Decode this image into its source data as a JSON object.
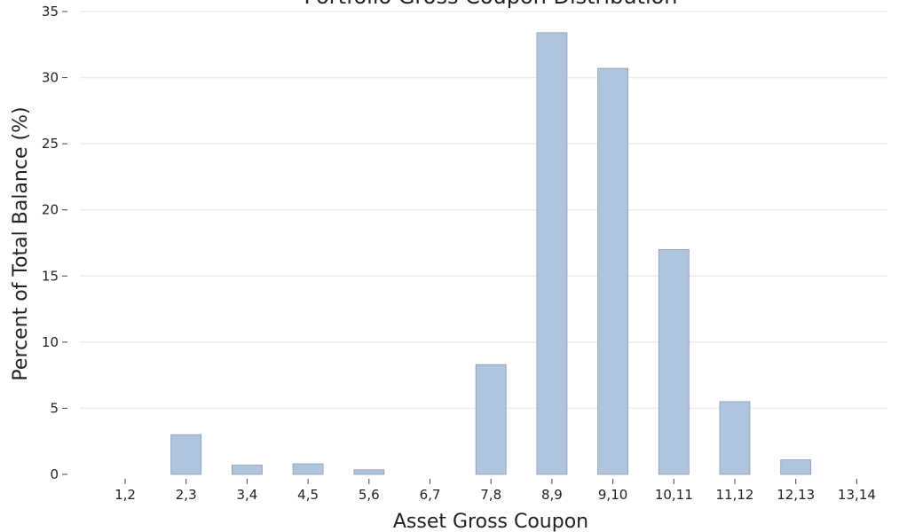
{
  "chart_data": {
    "type": "bar",
    "title": "Portfolio Gross Coupon Distribution",
    "xlabel": "Asset Gross Coupon",
    "ylabel": "Percent of Total Balance (%)",
    "categories": [
      "1,2",
      "2,3",
      "3,4",
      "4,5",
      "5,6",
      "6,7",
      "7,8",
      "8,9",
      "9,10",
      "10,11",
      "11,12",
      "12,13",
      "13,14"
    ],
    "values": [
      0,
      3.0,
      0.7,
      0.8,
      0.35,
      0,
      8.3,
      33.4,
      30.7,
      17.0,
      5.5,
      1.1,
      0
    ],
    "yticks": [
      "0",
      "5",
      "10",
      "15",
      "20",
      "25",
      "30",
      "35"
    ],
    "ylim": [
      0,
      35
    ],
    "grid": "horizontal",
    "legend": "none",
    "colors": {
      "bar_fill": "#b0c4de",
      "bar_stroke": "#8a9bb0",
      "grid": "#ececec",
      "text": "#222222"
    }
  }
}
